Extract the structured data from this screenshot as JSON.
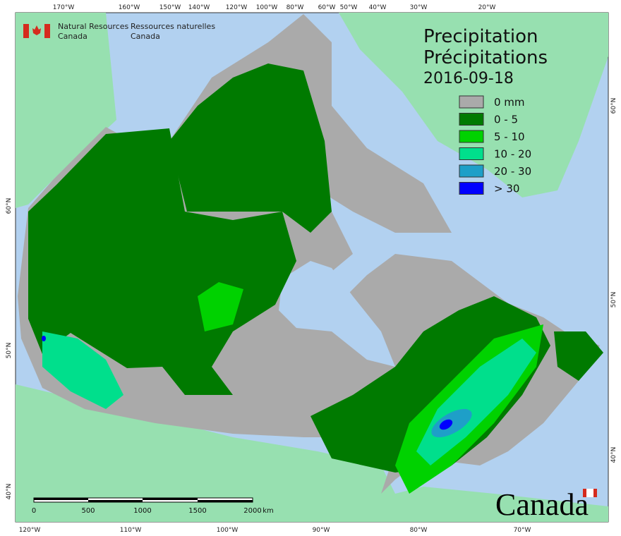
{
  "agency": {
    "en_line1": "Natural Resources",
    "en_line2": "Canada",
    "fr_line1": "Ressources naturelles",
    "fr_line2": "Canada"
  },
  "title": {
    "en": "Precipitation",
    "fr": "Précipitations",
    "date": "2016-09-18"
  },
  "legend": [
    {
      "label": "0 mm",
      "color": "#aaaaaa"
    },
    {
      "label": "0 - 5",
      "color": "#007a00"
    },
    {
      "label": "5 - 10",
      "color": "#00d200"
    },
    {
      "label": "10 - 20",
      "color": "#00df8c"
    },
    {
      "label": "20 - 30",
      "color": "#1e9fc8"
    },
    {
      "label": "> 30",
      "color": "#0000ff"
    }
  ],
  "graticule": {
    "top": [
      "170°W",
      "160°W",
      "150°W",
      "140°W",
      "120°W",
      "100°W",
      "80°W",
      "60°W",
      "50°W",
      "40°W",
      "30°W",
      "20°W"
    ],
    "bottom": [
      "120°W",
      "110°W",
      "100°W",
      "90°W",
      "80°W",
      "70°W"
    ],
    "left": [
      "60°N",
      "50°N",
      "40°N"
    ],
    "right": [
      "60°N",
      "50°N",
      "40°N"
    ]
  },
  "scale_bar": {
    "labels": [
      "0",
      "500",
      "1000",
      "1500",
      "2000"
    ],
    "unit": "km"
  },
  "wordmark": "Canada"
}
